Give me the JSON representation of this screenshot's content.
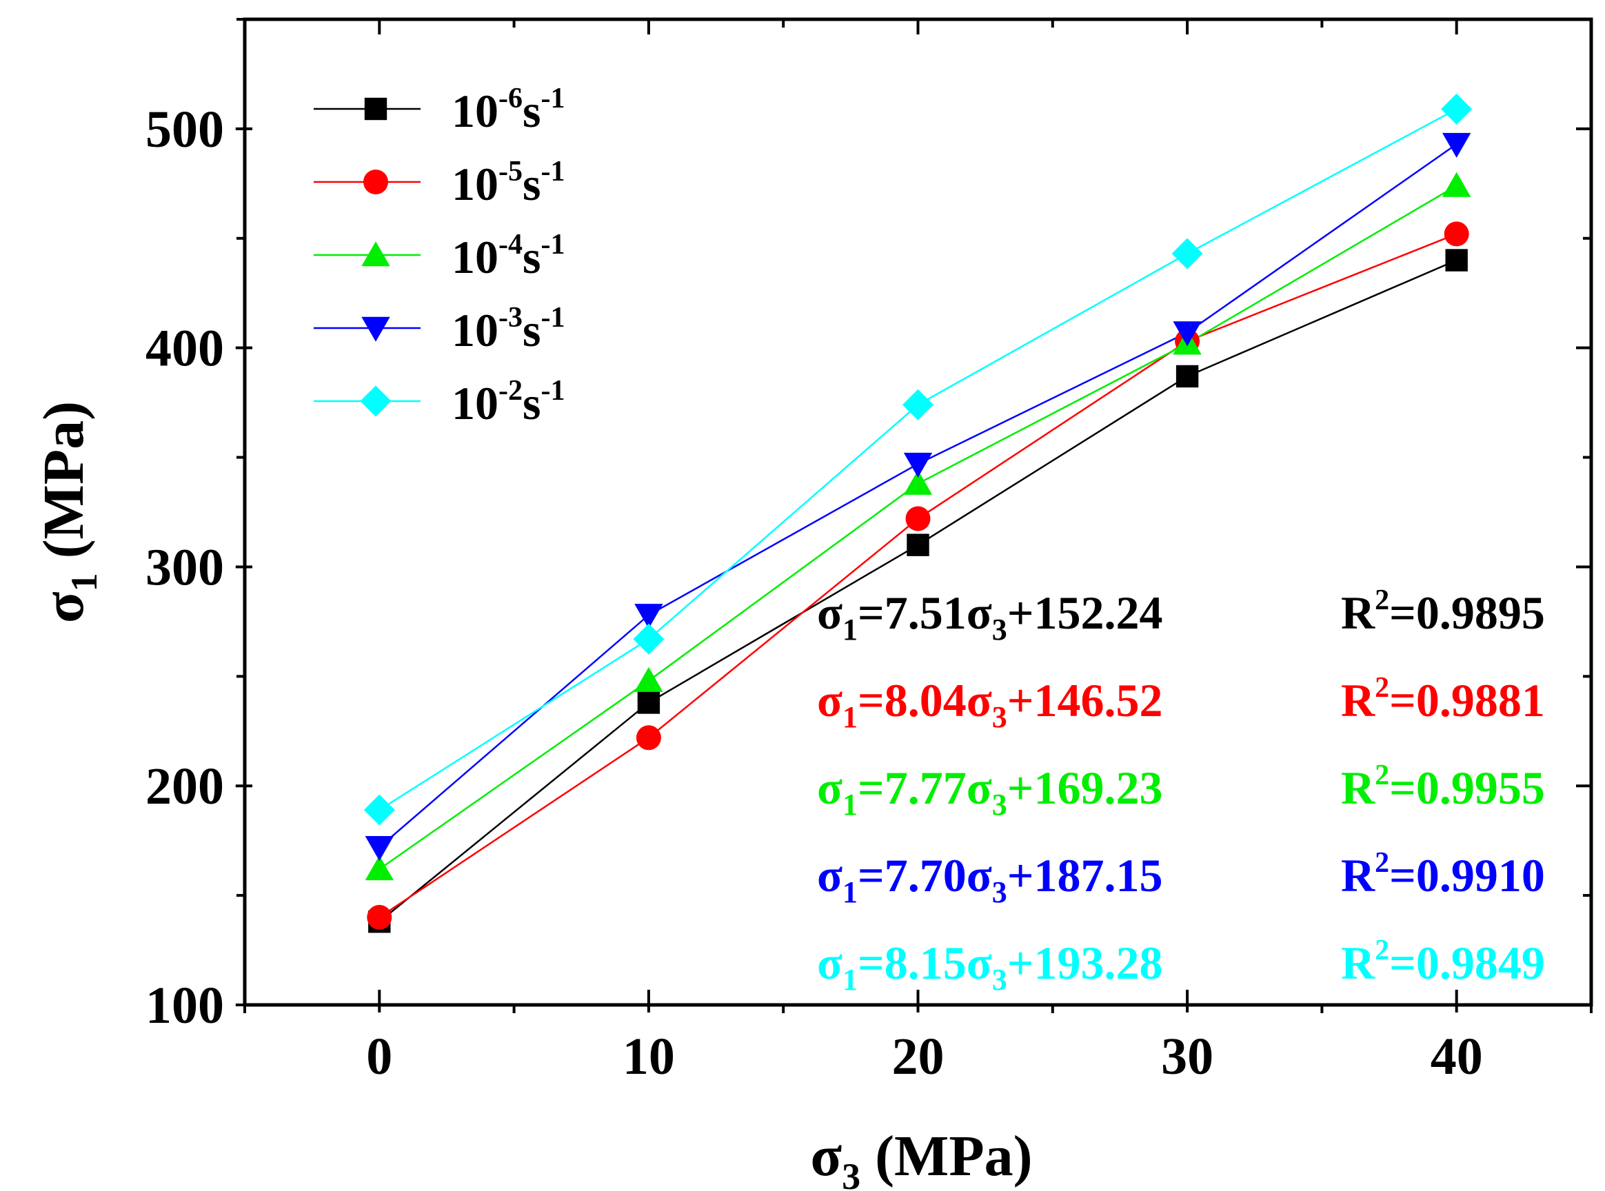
{
  "chart_data": {
    "type": "line",
    "x": [
      0,
      10,
      20,
      30,
      40
    ],
    "xlabel": {
      "symbol": "σ",
      "sub": "3",
      "unit": " (MPa)"
    },
    "ylabel": {
      "symbol": "σ",
      "sub": "1",
      "unit": " (MPa)"
    },
    "xlim": [
      -5,
      45
    ],
    "ylim": [
      100,
      550
    ],
    "xticks": [
      0,
      10,
      20,
      30,
      40
    ],
    "yticks": [
      100,
      200,
      300,
      400,
      500
    ],
    "grid": false,
    "legend_position": "top-left",
    "series": [
      {
        "name": "10-6s-1",
        "base": "10",
        "exp1": "-6",
        "unit": "s",
        "exp2": "-1",
        "marker": "square",
        "color": "#000000",
        "values": [
          138,
          238,
          310,
          387,
          440
        ],
        "fit": {
          "lhs": "σ",
          "lhs_sub": "1",
          "coef": "=7.51",
          "var": "σ",
          "var_sub": "3",
          "intercept": "+152.24",
          "r2_label": "R",
          "r2_exp": "2",
          "r2_value": "=0.9895"
        }
      },
      {
        "name": "10-5s-1",
        "base": "10",
        "exp1": "-5",
        "unit": "s",
        "exp2": "-1",
        "marker": "circle",
        "color": "#ff0000",
        "values": [
          140,
          222,
          322,
          403,
          452
        ],
        "fit": {
          "lhs": "σ",
          "lhs_sub": "1",
          "coef": "=8.04",
          "var": "σ",
          "var_sub": "3",
          "intercept": "+146.52",
          "r2_label": "R",
          "r2_exp": "2",
          "r2_value": "=0.9881"
        }
      },
      {
        "name": "10-4s-1",
        "base": "10",
        "exp1": "-4",
        "unit": "s",
        "exp2": "-1",
        "marker": "triangle-up",
        "color": "#00ee00",
        "values": [
          162,
          248,
          338,
          402,
          474
        ],
        "fit": {
          "lhs": "σ",
          "lhs_sub": "1",
          "coef": "=7.77",
          "var": "σ",
          "var_sub": "3",
          "intercept": "+169.23",
          "r2_label": "R",
          "r2_exp": "2",
          "r2_value": "=0.9955"
        }
      },
      {
        "name": "10-3s-1",
        "base": "10",
        "exp1": "-3",
        "unit": "s",
        "exp2": "-1",
        "marker": "triangle-down",
        "color": "#0000ff",
        "values": [
          172,
          278,
          347,
          407,
          493
        ],
        "fit": {
          "lhs": "σ",
          "lhs_sub": "1",
          "coef": "=7.70",
          "var": "σ",
          "var_sub": "3",
          "intercept": "+187.15",
          "r2_label": "R",
          "r2_exp": "2",
          "r2_value": "=0.9910"
        }
      },
      {
        "name": "10-2s-1",
        "base": "10",
        "exp1": "-2",
        "unit": "s",
        "exp2": "-1",
        "marker": "diamond",
        "color": "#00ffff",
        "values": [
          189,
          267,
          374,
          443,
          509
        ],
        "fit": {
          "lhs": "σ",
          "lhs_sub": "1",
          "coef": "=8.15",
          "var": "σ",
          "var_sub": "3",
          "intercept": "+193.28",
          "r2_label": "R",
          "r2_exp": "2",
          "r2_value": "=0.9849"
        }
      }
    ]
  }
}
